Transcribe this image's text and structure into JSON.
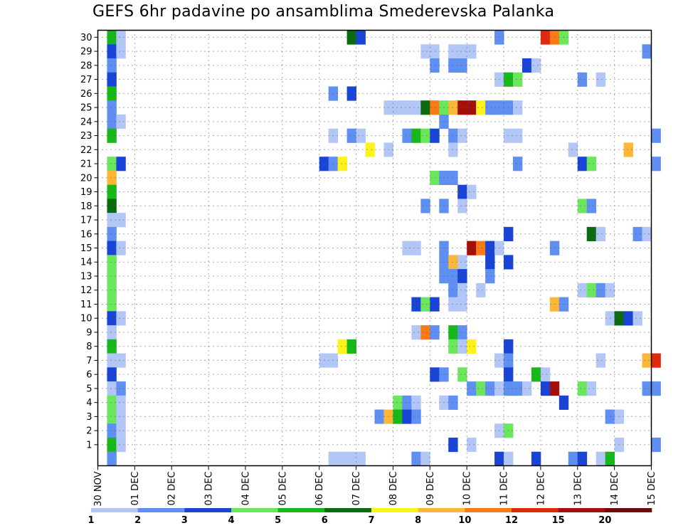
{
  "chart_data": {
    "type": "heatmap",
    "title": "GEFS 6hr padavine po ansamblima Smederevska Palanka",
    "x_tick_labels": [
      "30 NOV",
      "01 DEC",
      "02 DEC",
      "03 DEC",
      "04 DEC",
      "05 DEC",
      "06 DEC",
      "07 DEC",
      "08 DEC",
      "09 DEC",
      "10 DEC",
      "11 DEC",
      "12 DEC",
      "13 DEC",
      "14 DEC",
      "15 DEC"
    ],
    "y_tick_labels": [
      "1",
      "2",
      "3",
      "4",
      "5",
      "6",
      "7",
      "8",
      "9",
      "10",
      "11",
      "12",
      "13",
      "14",
      "15",
      "16",
      "17",
      "18",
      "19",
      "20",
      "21",
      "22",
      "23",
      "24",
      "25",
      "26",
      "27",
      "28",
      "29",
      "30"
    ],
    "x_time_steps": 60,
    "y_members": 31,
    "grid": true,
    "colorbar": {
      "labels": [
        "1",
        "2",
        "3",
        "4",
        "5",
        "6",
        "7",
        "8",
        "10",
        "12",
        "15",
        "20"
      ],
      "colors": [
        "#b3c7f7",
        "#5f8ff0",
        "#1a44d6",
        "#6be75d",
        "#19b81a",
        "#0a6c0f",
        "#fff21b",
        "#fdb738",
        "#fa7a14",
        "#e02a0d",
        "#a50f0b",
        "#6b0b0b"
      ]
    },
    "cells": [
      {
        "x": 1,
        "y": 30,
        "c": 5
      },
      {
        "x": 2,
        "y": 30,
        "c": 1
      },
      {
        "x": 27,
        "y": 30,
        "c": 6
      },
      {
        "x": 28,
        "y": 30,
        "c": 3
      },
      {
        "x": 43,
        "y": 30,
        "c": 2
      },
      {
        "x": 48,
        "y": 30,
        "c": 10
      },
      {
        "x": 49,
        "y": 30,
        "c": 9
      },
      {
        "x": 50,
        "y": 30,
        "c": 4
      },
      {
        "x": 1,
        "y": 29,
        "c": 3
      },
      {
        "x": 2,
        "y": 29,
        "c": 1
      },
      {
        "x": 35,
        "y": 29,
        "c": 1
      },
      {
        "x": 36,
        "y": 29,
        "c": 1
      },
      {
        "x": 38,
        "y": 29,
        "c": 1
      },
      {
        "x": 39,
        "y": 29,
        "c": 1
      },
      {
        "x": 40,
        "y": 29,
        "c": 1
      },
      {
        "x": 59,
        "y": 29,
        "c": 2
      },
      {
        "x": 1,
        "y": 28,
        "c": 2
      },
      {
        "x": 36,
        "y": 28,
        "c": 2
      },
      {
        "x": 38,
        "y": 28,
        "c": 2
      },
      {
        "x": 39,
        "y": 28,
        "c": 2
      },
      {
        "x": 46,
        "y": 28,
        "c": 3
      },
      {
        "x": 47,
        "y": 28,
        "c": 1
      },
      {
        "x": 1,
        "y": 27,
        "c": 3
      },
      {
        "x": 43,
        "y": 27,
        "c": 1
      },
      {
        "x": 44,
        "y": 27,
        "c": 5
      },
      {
        "x": 45,
        "y": 27,
        "c": 4
      },
      {
        "x": 52,
        "y": 27,
        "c": 2
      },
      {
        "x": 54,
        "y": 27,
        "c": 1
      },
      {
        "x": 1,
        "y": 26,
        "c": 5
      },
      {
        "x": 25,
        "y": 26,
        "c": 2
      },
      {
        "x": 27,
        "y": 26,
        "c": 3
      },
      {
        "x": 1,
        "y": 25,
        "c": 2
      },
      {
        "x": 31,
        "y": 25,
        "c": 1
      },
      {
        "x": 32,
        "y": 25,
        "c": 1
      },
      {
        "x": 33,
        "y": 25,
        "c": 1
      },
      {
        "x": 34,
        "y": 25,
        "c": 1
      },
      {
        "x": 35,
        "y": 25,
        "c": 6
      },
      {
        "x": 36,
        "y": 25,
        "c": 9
      },
      {
        "x": 37,
        "y": 25,
        "c": 4
      },
      {
        "x": 38,
        "y": 25,
        "c": 8
      },
      {
        "x": 39,
        "y": 25,
        "c": 11
      },
      {
        "x": 40,
        "y": 25,
        "c": 11
      },
      {
        "x": 41,
        "y": 25,
        "c": 7
      },
      {
        "x": 42,
        "y": 25,
        "c": 2
      },
      {
        "x": 43,
        "y": 25,
        "c": 2
      },
      {
        "x": 44,
        "y": 25,
        "c": 2
      },
      {
        "x": 45,
        "y": 25,
        "c": 1
      },
      {
        "x": 1,
        "y": 24,
        "c": 2
      },
      {
        "x": 2,
        "y": 24,
        "c": 1
      },
      {
        "x": 37,
        "y": 24,
        "c": 2
      },
      {
        "x": 1,
        "y": 23,
        "c": 5
      },
      {
        "x": 25,
        "y": 23,
        "c": 1
      },
      {
        "x": 27,
        "y": 23,
        "c": 2
      },
      {
        "x": 28,
        "y": 23,
        "c": 1
      },
      {
        "x": 33,
        "y": 23,
        "c": 2
      },
      {
        "x": 34,
        "y": 23,
        "c": 5
      },
      {
        "x": 35,
        "y": 23,
        "c": 4
      },
      {
        "x": 36,
        "y": 23,
        "c": 3
      },
      {
        "x": 38,
        "y": 23,
        "c": 2
      },
      {
        "x": 39,
        "y": 23,
        "c": 1
      },
      {
        "x": 44,
        "y": 23,
        "c": 1
      },
      {
        "x": 45,
        "y": 23,
        "c": 1
      },
      {
        "x": 60,
        "y": 23,
        "c": 2
      },
      {
        "x": 29,
        "y": 22,
        "c": 7
      },
      {
        "x": 31,
        "y": 22,
        "c": 1
      },
      {
        "x": 38,
        "y": 22,
        "c": 1
      },
      {
        "x": 51,
        "y": 22,
        "c": 1
      },
      {
        "x": 57,
        "y": 22,
        "c": 8
      },
      {
        "x": 1,
        "y": 21,
        "c": 4
      },
      {
        "x": 2,
        "y": 21,
        "c": 3
      },
      {
        "x": 24,
        "y": 21,
        "c": 3
      },
      {
        "x": 25,
        "y": 21,
        "c": 2
      },
      {
        "x": 26,
        "y": 21,
        "c": 7
      },
      {
        "x": 45,
        "y": 21,
        "c": 2
      },
      {
        "x": 52,
        "y": 21,
        "c": 3
      },
      {
        "x": 53,
        "y": 21,
        "c": 4
      },
      {
        "x": 60,
        "y": 21,
        "c": 2
      },
      {
        "x": 1,
        "y": 20,
        "c": 8
      },
      {
        "x": 36,
        "y": 20,
        "c": 4
      },
      {
        "x": 37,
        "y": 20,
        "c": 2
      },
      {
        "x": 38,
        "y": 20,
        "c": 2
      },
      {
        "x": 1,
        "y": 19,
        "c": 5
      },
      {
        "x": 39,
        "y": 19,
        "c": 3
      },
      {
        "x": 40,
        "y": 19,
        "c": 1
      },
      {
        "x": 1,
        "y": 18,
        "c": 6
      },
      {
        "x": 35,
        "y": 18,
        "c": 2
      },
      {
        "x": 37,
        "y": 18,
        "c": 2
      },
      {
        "x": 39,
        "y": 18,
        "c": 1
      },
      {
        "x": 52,
        "y": 18,
        "c": 4
      },
      {
        "x": 53,
        "y": 18,
        "c": 2
      },
      {
        "x": 1,
        "y": 17,
        "c": 1
      },
      {
        "x": 2,
        "y": 17,
        "c": 1
      },
      {
        "x": 1,
        "y": 16,
        "c": 2
      },
      {
        "x": 44,
        "y": 16,
        "c": 3
      },
      {
        "x": 53,
        "y": 16,
        "c": 6
      },
      {
        "x": 54,
        "y": 16,
        "c": 1
      },
      {
        "x": 58,
        "y": 16,
        "c": 2
      },
      {
        "x": 59,
        "y": 16,
        "c": 1
      },
      {
        "x": 1,
        "y": 15,
        "c": 3
      },
      {
        "x": 2,
        "y": 15,
        "c": 1
      },
      {
        "x": 33,
        "y": 15,
        "c": 1
      },
      {
        "x": 34,
        "y": 15,
        "c": 1
      },
      {
        "x": 37,
        "y": 15,
        "c": 2
      },
      {
        "x": 40,
        "y": 15,
        "c": 11
      },
      {
        "x": 41,
        "y": 15,
        "c": 9
      },
      {
        "x": 42,
        "y": 15,
        "c": 3
      },
      {
        "x": 43,
        "y": 15,
        "c": 1
      },
      {
        "x": 49,
        "y": 15,
        "c": 2
      },
      {
        "x": 1,
        "y": 14,
        "c": 4
      },
      {
        "x": 37,
        "y": 14,
        "c": 2
      },
      {
        "x": 38,
        "y": 14,
        "c": 8
      },
      {
        "x": 39,
        "y": 14,
        "c": 1
      },
      {
        "x": 42,
        "y": 14,
        "c": 3
      },
      {
        "x": 44,
        "y": 14,
        "c": 3
      },
      {
        "x": 1,
        "y": 13,
        "c": 4
      },
      {
        "x": 37,
        "y": 13,
        "c": 2
      },
      {
        "x": 38,
        "y": 13,
        "c": 2
      },
      {
        "x": 39,
        "y": 13,
        "c": 3
      },
      {
        "x": 42,
        "y": 13,
        "c": 2
      },
      {
        "x": 1,
        "y": 12,
        "c": 4
      },
      {
        "x": 38,
        "y": 12,
        "c": 2
      },
      {
        "x": 39,
        "y": 12,
        "c": 1
      },
      {
        "x": 41,
        "y": 12,
        "c": 1
      },
      {
        "x": 52,
        "y": 12,
        "c": 1
      },
      {
        "x": 53,
        "y": 12,
        "c": 4
      },
      {
        "x": 54,
        "y": 12,
        "c": 2
      },
      {
        "x": 55,
        "y": 12,
        "c": 1
      },
      {
        "x": 1,
        "y": 11,
        "c": 4
      },
      {
        "x": 34,
        "y": 11,
        "c": 3
      },
      {
        "x": 35,
        "y": 11,
        "c": 4
      },
      {
        "x": 36,
        "y": 11,
        "c": 3
      },
      {
        "x": 38,
        "y": 11,
        "c": 1
      },
      {
        "x": 39,
        "y": 11,
        "c": 1
      },
      {
        "x": 49,
        "y": 11,
        "c": 8
      },
      {
        "x": 50,
        "y": 11,
        "c": 2
      },
      {
        "x": 1,
        "y": 10,
        "c": 3
      },
      {
        "x": 2,
        "y": 10,
        "c": 1
      },
      {
        "x": 55,
        "y": 10,
        "c": 1
      },
      {
        "x": 56,
        "y": 10,
        "c": 6
      },
      {
        "x": 57,
        "y": 10,
        "c": 3
      },
      {
        "x": 58,
        "y": 10,
        "c": 1
      },
      {
        "x": 1,
        "y": 9,
        "c": 1
      },
      {
        "x": 34,
        "y": 9,
        "c": 1
      },
      {
        "x": 35,
        "y": 9,
        "c": 9
      },
      {
        "x": 36,
        "y": 9,
        "c": 2
      },
      {
        "x": 38,
        "y": 9,
        "c": 5
      },
      {
        "x": 39,
        "y": 9,
        "c": 2
      },
      {
        "x": 1,
        "y": 8,
        "c": 5
      },
      {
        "x": 26,
        "y": 8,
        "c": 7
      },
      {
        "x": 27,
        "y": 8,
        "c": 5
      },
      {
        "x": 38,
        "y": 8,
        "c": 4
      },
      {
        "x": 39,
        "y": 8,
        "c": 1
      },
      {
        "x": 40,
        "y": 8,
        "c": 7
      },
      {
        "x": 44,
        "y": 8,
        "c": 3
      },
      {
        "x": 1,
        "y": 7,
        "c": 1
      },
      {
        "x": 2,
        "y": 7,
        "c": 1
      },
      {
        "x": 24,
        "y": 7,
        "c": 1
      },
      {
        "x": 25,
        "y": 7,
        "c": 1
      },
      {
        "x": 43,
        "y": 7,
        "c": 1
      },
      {
        "x": 44,
        "y": 7,
        "c": 2
      },
      {
        "x": 54,
        "y": 7,
        "c": 1
      },
      {
        "x": 59,
        "y": 7,
        "c": 8
      },
      {
        "x": 60,
        "y": 7,
        "c": 10
      },
      {
        "x": 1,
        "y": 6,
        "c": 3
      },
      {
        "x": 36,
        "y": 6,
        "c": 3
      },
      {
        "x": 37,
        "y": 6,
        "c": 2
      },
      {
        "x": 39,
        "y": 6,
        "c": 4
      },
      {
        "x": 44,
        "y": 6,
        "c": 3
      },
      {
        "x": 47,
        "y": 6,
        "c": 5
      },
      {
        "x": 48,
        "y": 6,
        "c": 1
      },
      {
        "x": 1,
        "y": 5,
        "c": 1
      },
      {
        "x": 2,
        "y": 5,
        "c": 2
      },
      {
        "x": 40,
        "y": 5,
        "c": 2
      },
      {
        "x": 41,
        "y": 5,
        "c": 4
      },
      {
        "x": 42,
        "y": 5,
        "c": 2
      },
      {
        "x": 43,
        "y": 5,
        "c": 1
      },
      {
        "x": 44,
        "y": 5,
        "c": 2
      },
      {
        "x": 45,
        "y": 5,
        "c": 2
      },
      {
        "x": 46,
        "y": 5,
        "c": 1
      },
      {
        "x": 48,
        "y": 5,
        "c": 3
      },
      {
        "x": 49,
        "y": 5,
        "c": 11
      },
      {
        "x": 52,
        "y": 5,
        "c": 4
      },
      {
        "x": 53,
        "y": 5,
        "c": 1
      },
      {
        "x": 59,
        "y": 5,
        "c": 2
      },
      {
        "x": 60,
        "y": 5,
        "c": 2
      },
      {
        "x": 1,
        "y": 4,
        "c": 4
      },
      {
        "x": 2,
        "y": 4,
        "c": 1
      },
      {
        "x": 32,
        "y": 4,
        "c": 4
      },
      {
        "x": 33,
        "y": 4,
        "c": 2
      },
      {
        "x": 34,
        "y": 4,
        "c": 1
      },
      {
        "x": 37,
        "y": 4,
        "c": 1
      },
      {
        "x": 38,
        "y": 4,
        "c": 2
      },
      {
        "x": 50,
        "y": 4,
        "c": 3
      },
      {
        "x": 1,
        "y": 3,
        "c": 4
      },
      {
        "x": 2,
        "y": 3,
        "c": 1
      },
      {
        "x": 30,
        "y": 3,
        "c": 2
      },
      {
        "x": 31,
        "y": 3,
        "c": 8
      },
      {
        "x": 32,
        "y": 3,
        "c": 5
      },
      {
        "x": 33,
        "y": 3,
        "c": 3
      },
      {
        "x": 34,
        "y": 3,
        "c": 2
      },
      {
        "x": 55,
        "y": 3,
        "c": 2
      },
      {
        "x": 56,
        "y": 3,
        "c": 1
      },
      {
        "x": 1,
        "y": 2,
        "c": 2
      },
      {
        "x": 2,
        "y": 2,
        "c": 1
      },
      {
        "x": 43,
        "y": 2,
        "c": 1
      },
      {
        "x": 44,
        "y": 2,
        "c": 4
      },
      {
        "x": 1,
        "y": 1,
        "c": 5
      },
      {
        "x": 2,
        "y": 1,
        "c": 1
      },
      {
        "x": 38,
        "y": 1,
        "c": 3
      },
      {
        "x": 40,
        "y": 1,
        "c": 1
      },
      {
        "x": 56,
        "y": 1,
        "c": 1
      },
      {
        "x": 60,
        "y": 1,
        "c": 2
      },
      {
        "x": 1,
        "y": 0,
        "c": 2
      },
      {
        "x": 25,
        "y": 0,
        "c": 1
      },
      {
        "x": 26,
        "y": 0,
        "c": 1
      },
      {
        "x": 27,
        "y": 0,
        "c": 1
      },
      {
        "x": 28,
        "y": 0,
        "c": 1
      },
      {
        "x": 34,
        "y": 0,
        "c": 2
      },
      {
        "x": 35,
        "y": 0,
        "c": 1
      },
      {
        "x": 43,
        "y": 0,
        "c": 3
      },
      {
        "x": 44,
        "y": 0,
        "c": 1
      },
      {
        "x": 47,
        "y": 0,
        "c": 3
      },
      {
        "x": 51,
        "y": 0,
        "c": 2
      },
      {
        "x": 52,
        "y": 0,
        "c": 3
      },
      {
        "x": 54,
        "y": 0,
        "c": 1
      },
      {
        "x": 55,
        "y": 0,
        "c": 5
      }
    ]
  }
}
